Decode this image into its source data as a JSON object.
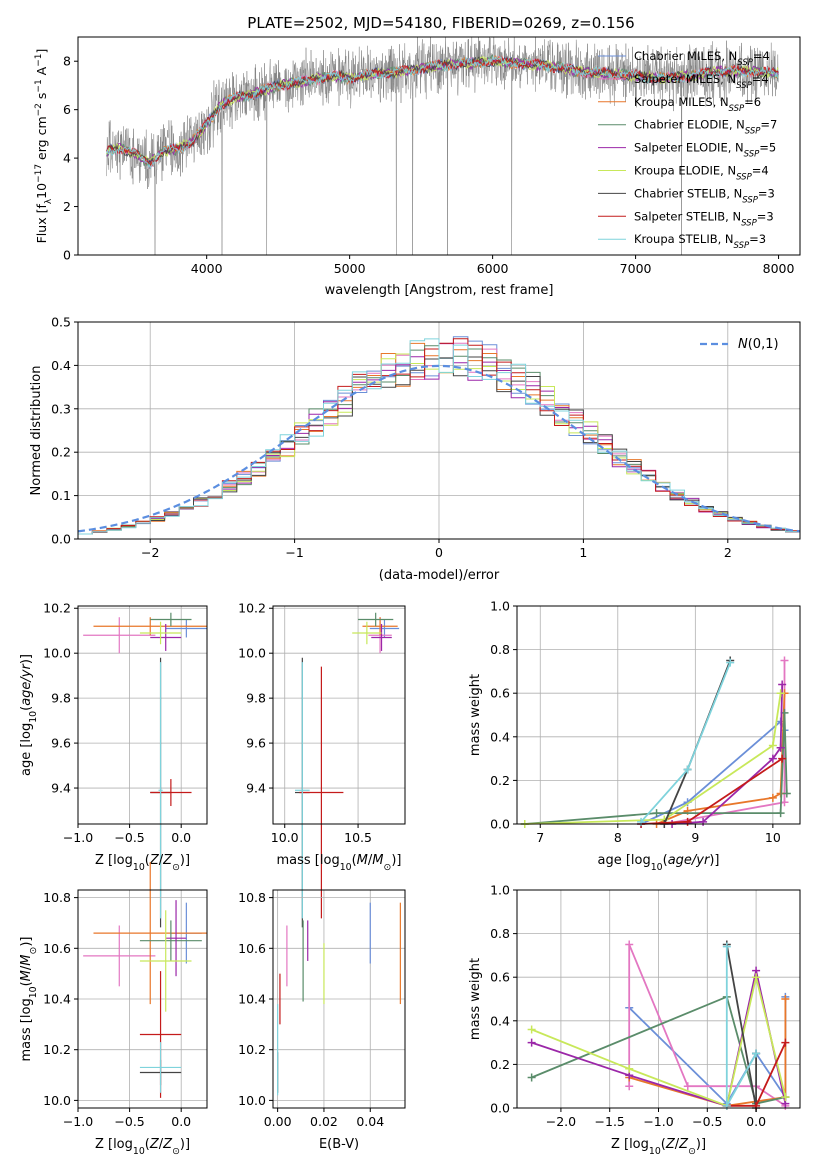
{
  "figure_title": "PLATE=2502, MJD=54180, FIBERID=0269, z=0.156",
  "colors": {
    "chabrier_miles": "#6b8fd8",
    "salpeter_miles": "#e377c2",
    "kroupa_miles": "#e8772a",
    "chabrier_elodie": "#5a8c6a",
    "salpeter_elodie": "#9b27a8",
    "kroupa_elodie": "#c8e85a",
    "chabrier_stelib": "#444444",
    "salpeter_stelib": "#c41b1b",
    "kroupa_stelib": "#7fd3dc",
    "spectrum_data": "#808080",
    "normal_curve": "#5b8ee0"
  },
  "chart_data": [
    {
      "id": "spectrum",
      "type": "line",
      "title": "PLATE=2502, MJD=54180, FIBERID=0269, z=0.156",
      "xlabel": "wavelength [Angstrom, rest frame]",
      "ylabel": "Flux [f_λ10^-17 erg cm^-2 s^-1 A^-1]",
      "xlim": [
        3100,
        8150
      ],
      "ylim": [
        0,
        9
      ],
      "xticks": [
        4000,
        5000,
        6000,
        7000,
        8000
      ],
      "yticks": [
        0,
        2,
        4,
        6,
        8
      ],
      "legend": "upper right",
      "series_labels": [
        {
          "key": "chabrier_miles",
          "label": "Chabrier MILES, N",
          "sub": "SSP",
          "tail": "=4"
        },
        {
          "key": "salpeter_miles",
          "label": "Salpeter MILES, N",
          "sub": "SSP",
          "tail": "=4"
        },
        {
          "key": "kroupa_miles",
          "label": "Kroupa MILES, N",
          "sub": "SSP",
          "tail": "=6"
        },
        {
          "key": "chabrier_elodie",
          "label": "Chabrier ELODIE, N",
          "sub": "SSP",
          "tail": "=7"
        },
        {
          "key": "salpeter_elodie",
          "label": "Salpeter ELODIE, N",
          "sub": "SSP",
          "tail": "=5"
        },
        {
          "key": "kroupa_elodie",
          "label": "Kroupa ELODIE, N",
          "sub": "SSP",
          "tail": "=4"
        },
        {
          "key": "chabrier_stelib",
          "label": "Chabrier STELIB, N",
          "sub": "SSP",
          "tail": "=3"
        },
        {
          "key": "salpeter_stelib",
          "label": "Salpeter STELIB, N",
          "sub": "SSP",
          "tail": "=3"
        },
        {
          "key": "kroupa_stelib",
          "label": "Kroupa STELIB, N",
          "sub": "SSP",
          "tail": "=3"
        }
      ],
      "model_curve": {
        "x": [
          3300,
          3400,
          3500,
          3600,
          3700,
          3800,
          3900,
          4000,
          4100,
          4200,
          4300,
          4400,
          4500,
          4600,
          4700,
          4800,
          4900,
          5000,
          5200,
          5400,
          5600,
          5800,
          6000,
          6200,
          6400,
          6600,
          6800,
          7000,
          7200,
          7400,
          7600,
          7800,
          8000
        ],
        "y": [
          4.3,
          4.4,
          4.2,
          3.8,
          4.3,
          4.4,
          4.7,
          5.4,
          6.2,
          6.5,
          6.6,
          6.8,
          7.0,
          7.1,
          7.2,
          7.3,
          7.4,
          7.3,
          7.5,
          7.6,
          7.8,
          7.9,
          8.0,
          7.9,
          7.8,
          7.6,
          7.5,
          7.4,
          7.3,
          7.4,
          7.6,
          7.6,
          7.5
        ]
      },
      "data_noise": 0.9
    },
    {
      "id": "residuals",
      "type": "line",
      "xlabel": "(data-model)/error",
      "ylabel": "Normed distribution",
      "xlim": [
        -2.5,
        2.5
      ],
      "ylim": [
        0,
        0.5
      ],
      "xticks": [
        -2,
        -1,
        0,
        1,
        2
      ],
      "yticks": [
        0.0,
        0.1,
        0.2,
        0.3,
        0.4,
        0.5
      ],
      "legend": "upper right",
      "legend_label": "N(0,1)",
      "normal_curve": {
        "mean": 0,
        "sigma": 1
      },
      "hist_bin_width": 0.1,
      "hist_shape": {
        "mean": 0.05,
        "sigma": 0.95,
        "scale": 1.0
      }
    },
    {
      "id": "age_vs_Z",
      "type": "scatter",
      "xlabel": "Z [log10(Z/Z☉)]",
      "ylabel": "age [log10(age/yr)]",
      "xlim": [
        -1.0,
        0.25
      ],
      "ylim": [
        9.24,
        10.21
      ],
      "xticks": [
        -1.0,
        -0.5,
        0.0
      ],
      "yticks": [
        9.4,
        9.6,
        9.8,
        10.0,
        10.2
      ],
      "points": [
        {
          "key": "chabrier_miles",
          "x": 0.05,
          "y": 10.11,
          "xerr": 0.2,
          "yerr": 0.04
        },
        {
          "key": "salpeter_miles",
          "x": -0.6,
          "y": 10.08,
          "xerr": 0.35,
          "yerr": 0.08
        },
        {
          "key": "kroupa_miles",
          "x": -0.3,
          "y": 10.12,
          "xerr": 0.55,
          "yerr": 0.04
        },
        {
          "key": "chabrier_elodie",
          "x": -0.1,
          "y": 10.15,
          "xerr": 0.2,
          "yerr": 0.03
        },
        {
          "key": "salpeter_elodie",
          "x": -0.15,
          "y": 10.07,
          "xerr": 0.15,
          "yerr": 0.06
        },
        {
          "key": "kroupa_elodie",
          "x": -0.2,
          "y": 10.09,
          "xerr": 0.2,
          "yerr": 0.05
        },
        {
          "key": "chabrier_stelib",
          "x": -0.2,
          "y": 9.38,
          "xerr": 0.1,
          "yerr": 0.6
        },
        {
          "key": "salpeter_stelib",
          "x": -0.1,
          "y": 9.38,
          "xerr": 0.2,
          "yerr": 0.06
        },
        {
          "key": "kroupa_stelib",
          "x": -0.2,
          "y": 9.39,
          "xerr": 0.02,
          "yerr": 0.57
        }
      ]
    },
    {
      "id": "age_vs_mass",
      "type": "scatter",
      "xlabel": "mass [log10(M/M☉)]",
      "ylabel": "",
      "xlim": [
        9.92,
        10.82
      ],
      "ylim": [
        9.24,
        10.21
      ],
      "xticks": [
        10.0,
        10.5
      ],
      "yticks": [
        9.4,
        9.6,
        9.8,
        10.0,
        10.2
      ],
      "points": [
        {
          "key": "chabrier_miles",
          "x": 10.68,
          "y": 10.11,
          "xerr": 0.1,
          "yerr": 0.04
        },
        {
          "key": "salpeter_miles",
          "x": 10.65,
          "y": 10.08,
          "xerr": 0.08,
          "yerr": 0.08
        },
        {
          "key": "kroupa_miles",
          "x": 10.65,
          "y": 10.12,
          "xerr": 0.12,
          "yerr": 0.04
        },
        {
          "key": "chabrier_elodie",
          "x": 10.62,
          "y": 10.15,
          "xerr": 0.12,
          "yerr": 0.03
        },
        {
          "key": "salpeter_elodie",
          "x": 10.66,
          "y": 10.07,
          "xerr": 0.07,
          "yerr": 0.06
        },
        {
          "key": "kroupa_elodie",
          "x": 10.56,
          "y": 10.09,
          "xerr": 0.1,
          "yerr": 0.05
        },
        {
          "key": "chabrier_stelib",
          "x": 10.12,
          "y": 9.38,
          "xerr": 0.05,
          "yerr": 0.6
        },
        {
          "key": "salpeter_stelib",
          "x": 10.25,
          "y": 9.38,
          "xerr": 0.15,
          "yerr": 0.56
        },
        {
          "key": "kroupa_stelib",
          "x": 10.12,
          "y": 9.39,
          "xerr": 0.05,
          "yerr": 0.57
        }
      ]
    },
    {
      "id": "weights_vs_age",
      "type": "line",
      "xlabel": "age [log10(age/yr)]",
      "ylabel": "mass weight",
      "xlim": [
        6.7,
        10.35
      ],
      "ylim": [
        0,
        1
      ],
      "xticks": [
        7,
        8,
        9,
        10
      ],
      "yticks": [
        0.0,
        0.2,
        0.4,
        0.6,
        0.8,
        1.0
      ],
      "series": [
        {
          "key": "chabrier_miles",
          "x": [
            8.3,
            8.9,
            10.1,
            10.15
          ],
          "y": [
            0.0,
            0.1,
            0.47,
            0.43
          ]
        },
        {
          "key": "salpeter_miles",
          "x": [
            8.6,
            10.15,
            10.15,
            10.15
          ],
          "y": [
            0.0,
            0.1,
            0.14,
            0.75
          ]
        },
        {
          "key": "kroupa_miles",
          "x": [
            8.5,
            8.9,
            10.0,
            10.1,
            10.15
          ],
          "y": [
            0.0,
            0.06,
            0.12,
            0.14,
            0.6
          ]
        },
        {
          "key": "chabrier_elodie",
          "x": [
            6.8,
            8.5,
            10.1,
            10.15,
            10.18
          ],
          "y": [
            0.0,
            0.05,
            0.05,
            0.51,
            0.14
          ]
        },
        {
          "key": "salpeter_elodie",
          "x": [
            8.7,
            9.1,
            10.0,
            10.1,
            10.12
          ],
          "y": [
            0.0,
            0.01,
            0.3,
            0.35,
            0.64
          ]
        },
        {
          "key": "kroupa_elodie",
          "x": [
            6.8,
            8.6,
            10.0,
            10.1
          ],
          "y": [
            0.0,
            0.02,
            0.36,
            0.6
          ]
        },
        {
          "key": "chabrier_stelib",
          "x": [
            8.6,
            8.9,
            9.45
          ],
          "y": [
            0.0,
            0.25,
            0.75
          ]
        },
        {
          "key": "salpeter_stelib",
          "x": [
            8.3,
            8.9,
            10.12
          ],
          "y": [
            0.0,
            0.01,
            0.3
          ]
        },
        {
          "key": "kroupa_stelib",
          "x": [
            8.3,
            8.9,
            9.45
          ],
          "y": [
            0.01,
            0.25,
            0.74
          ]
        }
      ]
    },
    {
      "id": "mass_vs_Z",
      "type": "scatter",
      "xlabel": "Z [log10(Z/Z☉)]",
      "ylabel": "mass [log10(M/M☉)]",
      "xlim": [
        -1.0,
        0.25
      ],
      "ylim": [
        9.97,
        10.83
      ],
      "xticks": [
        -1.0,
        -0.5,
        0.0
      ],
      "yticks": [
        10.0,
        10.2,
        10.4,
        10.6,
        10.8
      ],
      "points": [
        {
          "key": "chabrier_miles",
          "x": 0.05,
          "y": 10.66,
          "xerr": 0.15,
          "yerr": 0.12
        },
        {
          "key": "salpeter_miles",
          "x": -0.6,
          "y": 10.57,
          "xerr": 0.35,
          "yerr": 0.12
        },
        {
          "key": "kroupa_miles",
          "x": -0.3,
          "y": 10.66,
          "xerr": 0.55,
          "yerr": 0.28
        },
        {
          "key": "chabrier_elodie",
          "x": -0.1,
          "y": 10.63,
          "xerr": 0.3,
          "yerr": 0.08
        },
        {
          "key": "salpeter_elodie",
          "x": -0.05,
          "y": 10.64,
          "xerr": 0.1,
          "yerr": 0.15
        },
        {
          "key": "kroupa_elodie",
          "x": -0.15,
          "y": 10.55,
          "xerr": 0.25,
          "yerr": 0.2
        },
        {
          "key": "chabrier_stelib",
          "x": -0.2,
          "y": 10.11,
          "xerr": 0.2,
          "yerr": 0.05
        },
        {
          "key": "salpeter_stelib",
          "x": -0.2,
          "y": 10.26,
          "xerr": 0.2,
          "yerr": 0.25
        },
        {
          "key": "kroupa_stelib",
          "x": -0.2,
          "y": 10.13,
          "xerr": 0.2,
          "yerr": 0.1
        }
      ]
    },
    {
      "id": "mass_vs_ebv",
      "type": "scatter",
      "xlabel": "E(B-V)",
      "ylabel": "",
      "xlim": [
        -0.002,
        0.055
      ],
      "ylim": [
        9.97,
        10.83
      ],
      "xticks": [
        0.0,
        0.02,
        0.04
      ],
      "yticks": [
        10.0,
        10.2,
        10.4,
        10.6,
        10.8
      ],
      "points": [
        {
          "key": "chabrier_miles",
          "x": 0.04,
          "y": 10.66,
          "yerr": 0.12
        },
        {
          "key": "salpeter_miles",
          "x": 0.004,
          "y": 10.57,
          "yerr": 0.12
        },
        {
          "key": "kroupa_miles",
          "x": 0.053,
          "y": 10.58,
          "yerr": 0.2
        },
        {
          "key": "chabrier_elodie",
          "x": 0.011,
          "y": 10.55,
          "yerr": 0.16
        },
        {
          "key": "salpeter_elodie",
          "x": 0.013,
          "y": 10.63,
          "yerr": 0.08
        },
        {
          "key": "kroupa_elodie",
          "x": 0.02,
          "y": 10.5,
          "yerr": 0.12
        },
        {
          "key": "chabrier_stelib",
          "x": 0.0,
          "y": 10.11,
          "yerr": 0.08
        },
        {
          "key": "salpeter_stelib",
          "x": 0.001,
          "y": 10.4,
          "yerr": 0.1
        },
        {
          "key": "kroupa_stelib",
          "x": 0.0,
          "y": 10.2,
          "yerr": 0.18
        }
      ]
    },
    {
      "id": "weights_vs_Z",
      "type": "line",
      "xlabel": "Z [log10(Z/Z☉)]",
      "ylabel": "mass weight",
      "xlim": [
        -2.45,
        0.45
      ],
      "ylim": [
        0,
        1
      ],
      "xticks": [
        -2.0,
        -1.5,
        -1.0,
        -0.5,
        0.0
      ],
      "yticks": [
        0.0,
        0.2,
        0.4,
        0.6,
        0.8,
        1.0
      ],
      "series": [
        {
          "key": "chabrier_miles",
          "x": [
            -1.3,
            -0.3,
            0.0,
            0.3,
            0.3
          ],
          "y": [
            0.46,
            0.02,
            0.25,
            0.05,
            0.51
          ]
        },
        {
          "key": "salpeter_miles",
          "x": [
            -1.3,
            -1.3,
            -0.7,
            0.0,
            0.3
          ],
          "y": [
            0.1,
            0.75,
            0.1,
            0.1,
            0.01
          ]
        },
        {
          "key": "kroupa_miles",
          "x": [
            -1.3,
            -0.3,
            0.3,
            0.3
          ],
          "y": [
            0.14,
            0.01,
            0.05,
            0.5
          ]
        },
        {
          "key": "chabrier_elodie",
          "x": [
            -2.3,
            -0.3,
            0.0,
            0.3
          ],
          "y": [
            0.14,
            0.51,
            0.02,
            0.05
          ]
        },
        {
          "key": "salpeter_elodie",
          "x": [
            -2.3,
            -1.3,
            -0.3,
            0.0,
            0.3
          ],
          "y": [
            0.3,
            0.15,
            0.01,
            0.63,
            0.02
          ]
        },
        {
          "key": "kroupa_elodie",
          "x": [
            -2.3,
            -1.3,
            -0.3,
            0.0,
            0.3
          ],
          "y": [
            0.36,
            0.18,
            0.01,
            0.6,
            0.05
          ]
        },
        {
          "key": "chabrier_stelib",
          "x": [
            -0.3,
            0.0,
            0.0
          ],
          "y": [
            0.75,
            0.0,
            0.25
          ]
        },
        {
          "key": "salpeter_stelib",
          "x": [
            -0.3,
            0.0,
            0.3
          ],
          "y": [
            0.01,
            0.01,
            0.3
          ]
        },
        {
          "key": "kroupa_stelib",
          "x": [
            -0.3,
            -0.3,
            0.0
          ],
          "y": [
            0.74,
            0.01,
            0.25
          ]
        }
      ]
    }
  ]
}
